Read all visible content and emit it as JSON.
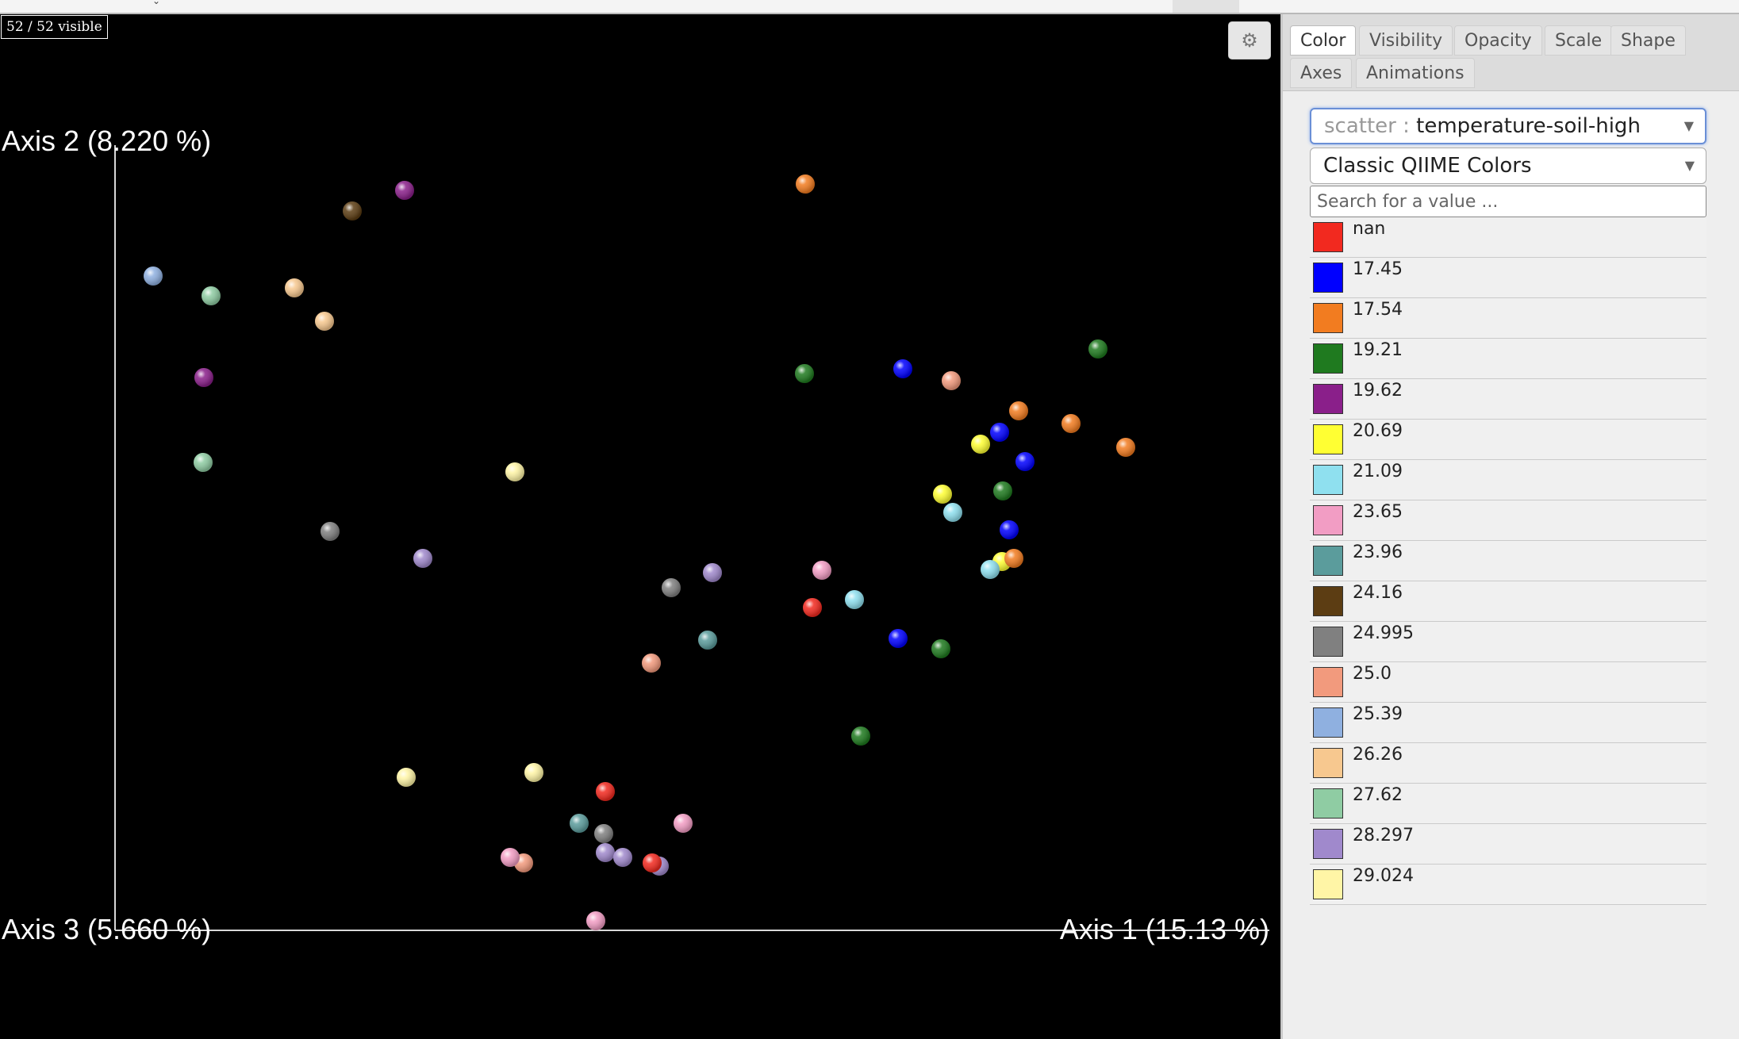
{
  "plot": {
    "visible_count": "52 / 52 visible",
    "background": "#000000",
    "axes": {
      "axis1_label": "Axis 1 (15.13 %)",
      "axis2_label": "Axis 2 (8.220 %)",
      "axis3_label": "Axis 3 (5.660 %)",
      "line_color": "#d8d8d8"
    },
    "settings_icon": "gear-icon"
  },
  "panel": {
    "tabs": [
      {
        "label": "Color",
        "active": true
      },
      {
        "label": "Visibility",
        "active": false
      },
      {
        "label": "Opacity",
        "active": false
      },
      {
        "label": "Scale",
        "active": false
      },
      {
        "label": "Shape",
        "active": false
      },
      {
        "label": "Axes",
        "active": false
      },
      {
        "label": "Animations",
        "active": false
      }
    ],
    "category_select": {
      "prefix": "scatter :",
      "value": "temperature-soil-high"
    },
    "colormap_select": {
      "value": "Classic QIIME Colors"
    },
    "search": {
      "placeholder": "Search for a value ...",
      "value": ""
    },
    "legend": [
      {
        "label": "nan",
        "color": "#f2291f"
      },
      {
        "label": "17.45",
        "color": "#0000ff"
      },
      {
        "label": "17.54",
        "color": "#f27c20"
      },
      {
        "label": "19.21",
        "color": "#1f7a1f"
      },
      {
        "label": "19.62",
        "color": "#8a1f8a"
      },
      {
        "label": "20.69",
        "color": "#ffff33"
      },
      {
        "label": "21.09",
        "color": "#8fe0ef"
      },
      {
        "label": "23.65",
        "color": "#f29dc4"
      },
      {
        "label": "23.96",
        "color": "#5b9c9c"
      },
      {
        "label": "24.16",
        "color": "#5c3d13"
      },
      {
        "label": "24.995",
        "color": "#808080"
      },
      {
        "label": "25.0",
        "color": "#f29a7d"
      },
      {
        "label": "25.39",
        "color": "#8fb0e0"
      },
      {
        "label": "26.26",
        "color": "#f7c88f"
      },
      {
        "label": "27.62",
        "color": "#8fcca3"
      },
      {
        "label": "28.297",
        "color": "#a089cc"
      },
      {
        "label": "29.024",
        "color": "#fff5a6"
      }
    ]
  }
}
